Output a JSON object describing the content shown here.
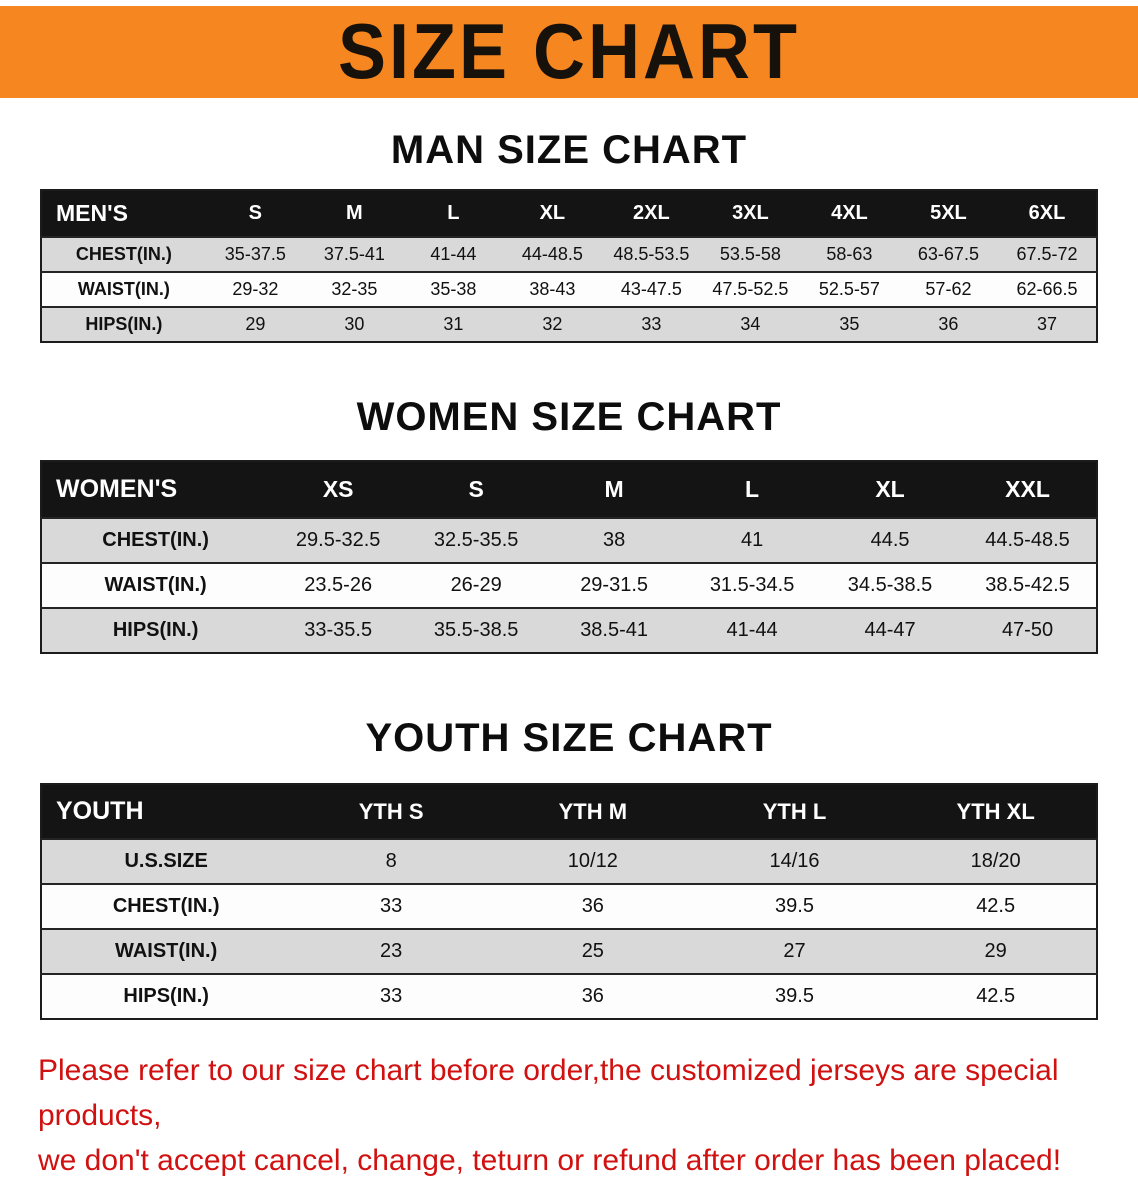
{
  "banner": {
    "title": "SIZE CHART"
  },
  "sections": {
    "men": {
      "heading": "MAN SIZE CHART",
      "table": {
        "header": [
          "MEN'S",
          "S",
          "M",
          "L",
          "XL",
          "2XL",
          "3XL",
          "4XL",
          "5XL",
          "6XL"
        ],
        "rows": [
          [
            "CHEST(IN.)",
            "35-37.5",
            "37.5-41",
            "41-44",
            "44-48.5",
            "48.5-53.5",
            "53.5-58",
            "58-63",
            "63-67.5",
            "67.5-72"
          ],
          [
            "WAIST(IN.)",
            "29-32",
            "32-35",
            "35-38",
            "38-43",
            "43-47.5",
            "47.5-52.5",
            "52.5-57",
            "57-62",
            "62-66.5"
          ],
          [
            "HIPS(IN.)",
            "29",
            "30",
            "31",
            "32",
            "33",
            "34",
            "35",
            "36",
            "37"
          ]
        ]
      }
    },
    "women": {
      "heading": "WOMEN SIZE CHART",
      "table": {
        "header": [
          "WOMEN'S",
          "XS",
          "S",
          "M",
          "L",
          "XL",
          "XXL"
        ],
        "rows": [
          [
            "CHEST(IN.)",
            "29.5-32.5",
            "32.5-35.5",
            "38",
            "41",
            "44.5",
            "44.5-48.5"
          ],
          [
            "WAIST(IN.)",
            "23.5-26",
            "26-29",
            "29-31.5",
            "31.5-34.5",
            "34.5-38.5",
            "38.5-42.5"
          ],
          [
            "HIPS(IN.)",
            "33-35.5",
            "35.5-38.5",
            "38.5-41",
            "41-44",
            "44-47",
            "47-50"
          ]
        ]
      }
    },
    "youth": {
      "heading": "YOUTH SIZE CHART",
      "table": {
        "header": [
          "YOUTH",
          "YTH S",
          "YTH M",
          "YTH L",
          "YTH XL"
        ],
        "rows": [
          [
            "U.S.SIZE",
            "8",
            "10/12",
            "14/16",
            "18/20"
          ],
          [
            "CHEST(IN.)",
            "33",
            "36",
            "39.5",
            "42.5"
          ],
          [
            "WAIST(IN.)",
            "23",
            "25",
            "27",
            "29"
          ],
          [
            "HIPS(IN.)",
            "33",
            "36",
            "39.5",
            "42.5"
          ]
        ]
      }
    }
  },
  "footer": {
    "lines": [
      "Please refer to our size chart before order,the customized jerseys are special products,",
      "we don't accept cancel, change, teturn or refund after order has been placed!"
    ]
  },
  "colors": {
    "banner_orange": "#F6861F",
    "header_black": "#141414",
    "stripe_gray": "#D9D9D9",
    "footer_red": "#D11010"
  }
}
